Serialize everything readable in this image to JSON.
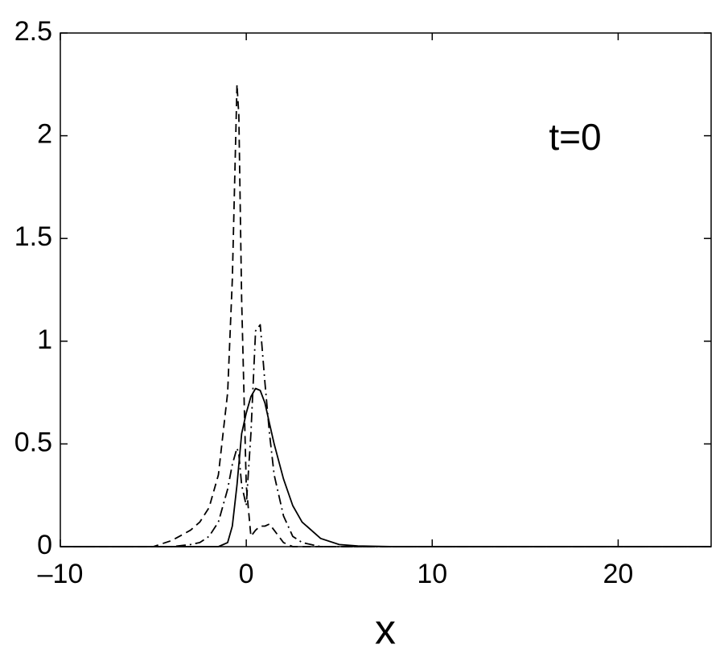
{
  "chart_data": {
    "type": "line",
    "annotation": "t=0",
    "x_label": "x",
    "x": [
      -10,
      -6,
      -5,
      -4,
      -3,
      -2.5,
      -2,
      -1.5,
      -1,
      -0.75,
      -0.5,
      -0.4,
      -0.25,
      0,
      0.25,
      0.5,
      0.75,
      1,
      1.25,
      1.5,
      2,
      2.5,
      3,
      4,
      5,
      6,
      8,
      10,
      25
    ],
    "series": [
      {
        "color": "#000000",
        "dash": "solid",
        "values": [
          0,
          0,
          0,
          0,
          0,
          0,
          0,
          0,
          0.02,
          0.1,
          0.3,
          0.4,
          0.55,
          0.65,
          0.73,
          0.77,
          0.76,
          0.7,
          0.6,
          0.5,
          0.33,
          0.2,
          0.12,
          0.04,
          0.01,
          0.003,
          0,
          0,
          0
        ]
      },
      {
        "color": "#000000",
        "dash": "dashed",
        "values": [
          0,
          0,
          0,
          0.03,
          0.08,
          0.12,
          0.19,
          0.35,
          0.75,
          1.3,
          2.25,
          2.1,
          1.2,
          0.3,
          0.05,
          0.08,
          0.1,
          0.1,
          0.11,
          0.08,
          0.02,
          0,
          0,
          0,
          0,
          0,
          0,
          0,
          0
        ]
      },
      {
        "color": "#000000",
        "dash": "dashdot",
        "values": [
          0,
          0,
          0,
          0,
          0.01,
          0.02,
          0.05,
          0.12,
          0.28,
          0.4,
          0.48,
          0.45,
          0.3,
          0.2,
          0.55,
          1.05,
          1.08,
          0.8,
          0.55,
          0.35,
          0.15,
          0.05,
          0.02,
          0,
          0,
          0,
          0,
          0,
          0
        ]
      }
    ],
    "xlim": [
      -10,
      25
    ],
    "ylim": [
      0,
      2.5
    ],
    "xticks": [
      {
        "value": -10,
        "label": "–10"
      },
      0,
      10,
      20
    ],
    "yticks": [
      0,
      0.5,
      1,
      1.5,
      2,
      2.5
    ],
    "grid": false
  }
}
